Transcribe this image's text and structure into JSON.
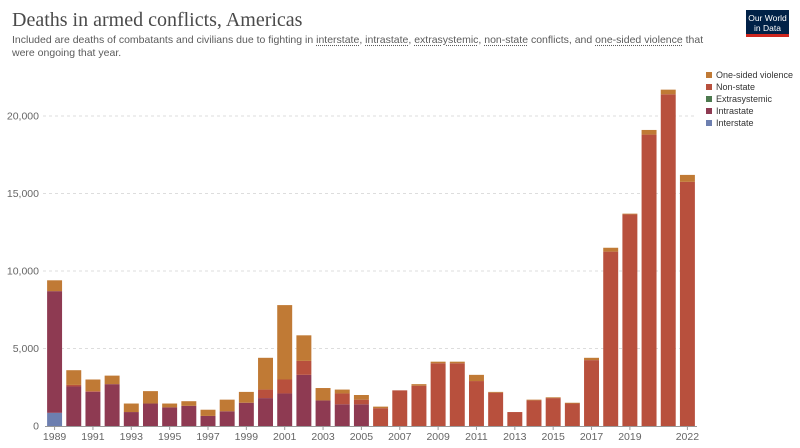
{
  "header": {
    "title": "Deaths in armed conflicts, Americas",
    "subtitle_parts": [
      {
        "text": "Included are deaths of combatants and civilians due to fighting in ",
        "u": false
      },
      {
        "text": "interstate",
        "u": true
      },
      {
        "text": ", ",
        "u": false
      },
      {
        "text": "intrastate",
        "u": true
      },
      {
        "text": ", ",
        "u": false
      },
      {
        "text": "extrasystemic",
        "u": true
      },
      {
        "text": ", ",
        "u": false
      },
      {
        "text": "non-state",
        "u": true
      },
      {
        "text": " conflicts, and ",
        "u": false
      },
      {
        "text": "one-sided violence",
        "u": true
      },
      {
        "text": " that were ongoing that year.",
        "u": false
      }
    ]
  },
  "logo": {
    "line1": "Our World",
    "line2": "in Data"
  },
  "chart_data": {
    "type": "bar",
    "stacked": true,
    "title": "Deaths in armed conflicts, Americas",
    "ylim": [
      0,
      22000
    ],
    "yticks": [
      0,
      5000,
      10000,
      15000,
      20000
    ],
    "ytick_labels": [
      "0",
      "5,000",
      "10,000",
      "15,000",
      "20,000"
    ],
    "grid": true,
    "legend_position": "right",
    "categories": [
      1989,
      1990,
      1991,
      1992,
      1993,
      1994,
      1995,
      1996,
      1997,
      1998,
      1999,
      2000,
      2001,
      2002,
      2003,
      2004,
      2005,
      2006,
      2007,
      2008,
      2009,
      2010,
      2011,
      2012,
      2013,
      2014,
      2015,
      2016,
      2017,
      2018,
      2019,
      2020,
      2021,
      2022
    ],
    "xtick_labels": [
      "1989",
      "1991",
      "1993",
      "1995",
      "1997",
      "1999",
      "2001",
      "2003",
      "2005",
      "2007",
      "2009",
      "2011",
      "2013",
      "2015",
      "2017",
      "2019",
      "2022"
    ],
    "xtick_years": [
      1989,
      1991,
      1993,
      1995,
      1997,
      1999,
      2001,
      2003,
      2005,
      2007,
      2009,
      2011,
      2013,
      2015,
      2017,
      2019,
      2022
    ],
    "series": [
      {
        "name": "Interstate",
        "color": "#6d7fb0",
        "values": [
          850,
          0,
          0,
          0,
          0,
          0,
          0,
          0,
          0,
          0,
          0,
          0,
          0,
          0,
          0,
          0,
          0,
          0,
          0,
          0,
          0,
          0,
          0,
          0,
          0,
          0,
          0,
          0,
          0,
          0,
          0,
          0,
          0,
          0
        ]
      },
      {
        "name": "Intrastate",
        "color": "#8e3a52",
        "values": [
          7850,
          2550,
          2200,
          2700,
          900,
          1450,
          1200,
          1300,
          650,
          950,
          1500,
          1800,
          2100,
          3300,
          1650,
          1400,
          1400,
          0,
          0,
          0,
          0,
          0,
          0,
          0,
          0,
          0,
          0,
          0,
          0,
          0,
          0,
          0,
          0,
          0
        ]
      },
      {
        "name": "Extrasystemic",
        "color": "#4d7a4f",
        "values": [
          0,
          0,
          0,
          0,
          0,
          0,
          0,
          0,
          0,
          0,
          0,
          0,
          0,
          0,
          0,
          0,
          0,
          0,
          0,
          0,
          0,
          0,
          0,
          0,
          0,
          0,
          0,
          0,
          0,
          0,
          0,
          0,
          0,
          0
        ]
      },
      {
        "name": "Non-state",
        "color": "#b8503d",
        "values": [
          0,
          100,
          50,
          0,
          0,
          0,
          0,
          0,
          0,
          0,
          0,
          550,
          900,
          900,
          0,
          700,
          300,
          1150,
          2300,
          2600,
          4050,
          4050,
          2900,
          2150,
          900,
          1650,
          1800,
          1450,
          4250,
          11250,
          13650,
          18800,
          21400,
          15750
        ]
      },
      {
        "name": "One-sided violence",
        "color": "#c07a35",
        "values": [
          700,
          950,
          750,
          550,
          550,
          800,
          250,
          300,
          400,
          750,
          700,
          2050,
          4800,
          1650,
          800,
          250,
          300,
          100,
          0,
          100,
          100,
          100,
          400,
          50,
          0,
          50,
          50,
          50,
          150,
          250,
          50,
          300,
          300,
          450
        ]
      }
    ]
  }
}
